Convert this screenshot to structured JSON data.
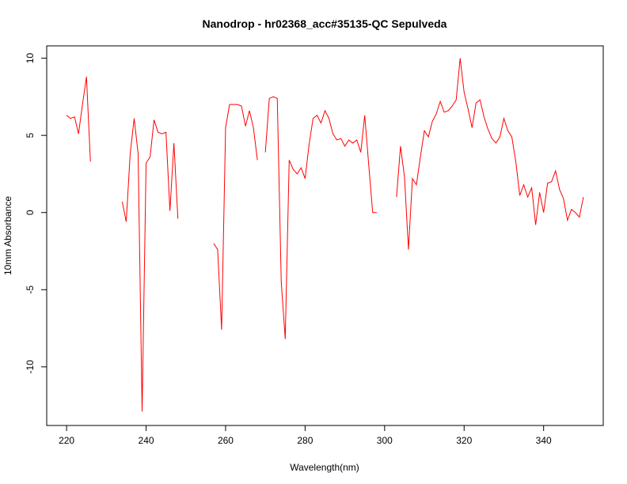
{
  "chart_data": {
    "type": "line",
    "title": "Nanodrop - hr02368_acc#35135-QC Sepulveda",
    "xlabel": "Wavelength(nm)",
    "ylabel": "10mm Absorbance",
    "xlim": [
      215,
      355
    ],
    "ylim": [
      -13.8,
      10.8
    ],
    "xticks": [
      220,
      240,
      260,
      280,
      300,
      320,
      340
    ],
    "yticks": [
      -10,
      -5,
      0,
      5,
      10
    ],
    "grid": false,
    "color": "#ff0000",
    "series": [
      {
        "segments": [
          [
            [
              220,
              6.3
            ],
            [
              221,
              6.1
            ],
            [
              222,
              6.2
            ],
            [
              223,
              5.1
            ],
            [
              224,
              7.0
            ],
            [
              225,
              8.8
            ],
            [
              226,
              3.3
            ]
          ],
          [
            [
              234,
              0.7
            ],
            [
              235,
              -0.6
            ],
            [
              236,
              3.8
            ],
            [
              237,
              6.1
            ],
            [
              238,
              3.8
            ],
            [
              239,
              -12.9
            ],
            [
              240,
              3.2
            ],
            [
              241,
              3.6
            ],
            [
              242,
              6.0
            ],
            [
              243,
              5.2
            ],
            [
              244,
              5.1
            ],
            [
              245,
              5.2
            ],
            [
              246,
              0.1
            ],
            [
              247,
              4.5
            ],
            [
              248,
              -0.4
            ]
          ],
          [
            [
              257,
              -2.0
            ],
            [
              258,
              -2.4
            ],
            [
              259,
              -7.6
            ],
            [
              260,
              5.5
            ],
            [
              261,
              7.0
            ],
            [
              262,
              7.0
            ],
            [
              263,
              7.0
            ],
            [
              264,
              6.9
            ],
            [
              265,
              5.6
            ],
            [
              266,
              6.6
            ],
            [
              267,
              5.5
            ],
            [
              268,
              3.4
            ]
          ],
          [
            [
              270,
              3.9
            ],
            [
              271,
              7.4
            ],
            [
              272,
              7.5
            ],
            [
              273,
              7.4
            ],
            [
              274,
              -4.5
            ],
            [
              275,
              -8.2
            ],
            [
              276,
              3.4
            ],
            [
              277,
              2.8
            ],
            [
              278,
              2.5
            ],
            [
              279,
              2.9
            ],
            [
              280,
              2.2
            ],
            [
              281,
              4.4
            ],
            [
              282,
              6.1
            ],
            [
              283,
              6.3
            ],
            [
              284,
              5.8
            ],
            [
              285,
              6.6
            ],
            [
              286,
              6.1
            ],
            [
              287,
              5.1
            ],
            [
              288,
              4.7
            ],
            [
              289,
              4.8
            ],
            [
              290,
              4.3
            ],
            [
              291,
              4.7
            ],
            [
              292,
              4.5
            ],
            [
              293,
              4.7
            ],
            [
              294,
              3.9
            ],
            [
              295,
              6.3
            ],
            [
              296,
              3.1
            ],
            [
              297,
              0.0
            ],
            [
              298,
              0.0
            ]
          ],
          [
            [
              303,
              1.0
            ],
            [
              304,
              4.3
            ],
            [
              305,
              2.3
            ],
            [
              306,
              -2.4
            ],
            [
              307,
              2.2
            ],
            [
              308,
              1.8
            ],
            [
              309,
              3.6
            ],
            [
              310,
              5.3
            ],
            [
              311,
              4.9
            ],
            [
              312,
              5.9
            ],
            [
              313,
              6.4
            ],
            [
              314,
              7.2
            ],
            [
              315,
              6.5
            ],
            [
              316,
              6.6
            ],
            [
              317,
              6.9
            ],
            [
              318,
              7.3
            ],
            [
              319,
              10.0
            ],
            [
              320,
              7.8
            ],
            [
              321,
              6.7
            ],
            [
              322,
              5.5
            ],
            [
              323,
              7.1
            ],
            [
              324,
              7.3
            ],
            [
              325,
              6.2
            ],
            [
              326,
              5.4
            ],
            [
              327,
              4.8
            ],
            [
              328,
              4.5
            ],
            [
              329,
              4.9
            ],
            [
              330,
              6.1
            ],
            [
              331,
              5.3
            ],
            [
              332,
              4.9
            ],
            [
              333,
              3.3
            ],
            [
              334,
              1.1
            ],
            [
              335,
              1.8
            ],
            [
              336,
              1.0
            ],
            [
              337,
              1.6
            ],
            [
              338,
              -0.8
            ],
            [
              339,
              1.3
            ],
            [
              340,
              0.0
            ],
            [
              341,
              1.9
            ],
            [
              342,
              2.0
            ],
            [
              343,
              2.7
            ],
            [
              344,
              1.5
            ],
            [
              345,
              0.9
            ],
            [
              346,
              -0.5
            ],
            [
              347,
              0.2
            ],
            [
              348,
              0.0
            ],
            [
              349,
              -0.3
            ],
            [
              350,
              1.0
            ]
          ]
        ]
      }
    ]
  }
}
